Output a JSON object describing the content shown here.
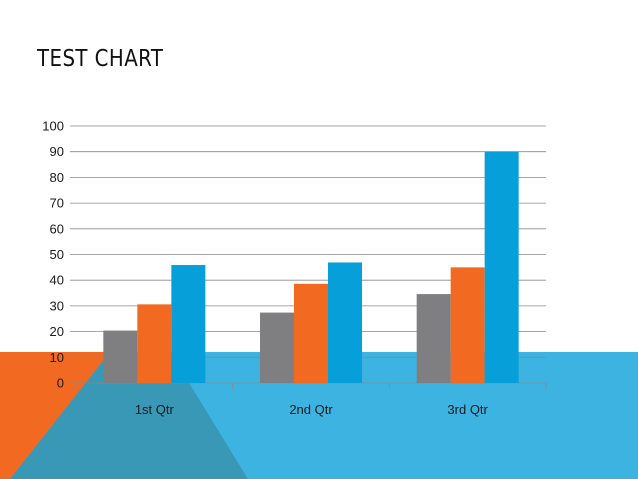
{
  "slide": {
    "title": "TEST CHART",
    "colors": {
      "orange": "#f26a22",
      "blue": "#3cb3e0",
      "dark_blue": "#3898b5"
    }
  },
  "chart_data": {
    "type": "bar",
    "title": "TEST CHART",
    "xlabel": "",
    "ylabel": "",
    "categories": [
      "1st Qtr",
      "2nd Qtr",
      "3rd Qtr"
    ],
    "series": [
      {
        "values": [
          20.4,
          27.4,
          34.6
        ],
        "color": "#7f7f82"
      },
      {
        "values": [
          30.6,
          38.6,
          45.0
        ],
        "color": "#f26a22"
      },
      {
        "values": [
          45.9,
          46.9,
          90.0
        ],
        "color": "#069fd9"
      }
    ],
    "ylim": [
      0,
      100
    ],
    "yticks": [
      "0",
      "10",
      "20",
      "30",
      "40",
      "50",
      "60",
      "70",
      "80",
      "90",
      "100"
    ],
    "grid": true,
    "legend": "none"
  }
}
